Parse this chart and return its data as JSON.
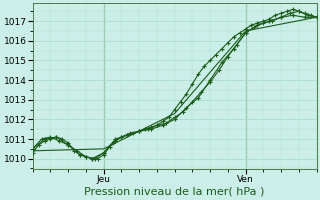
{
  "bg_color": "#cceee8",
  "grid_color": "#aaddcc",
  "line_color": "#1a5c1a",
  "vline_color": "#4a7a4a",
  "xlabel": "Pression niveau de la mer( hPa )",
  "xlabel_fontsize": 8,
  "tick_label_fontsize": 6.5,
  "ylim": [
    1009.5,
    1017.9
  ],
  "yticks": [
    1010,
    1011,
    1012,
    1013,
    1014,
    1015,
    1016,
    1017
  ],
  "xlim": [
    0,
    96
  ],
  "xday_labels": [
    [
      "Jeu",
      24
    ],
    [
      "Ven",
      72
    ]
  ],
  "series1_x": [
    0,
    2,
    4,
    6,
    8,
    10,
    12,
    14,
    16,
    18,
    20,
    22,
    24,
    26,
    28,
    30,
    32,
    34,
    36,
    38,
    40,
    42,
    44,
    46,
    48,
    50,
    52,
    54,
    56,
    58,
    60,
    62,
    64,
    66,
    68,
    70,
    72,
    74,
    76,
    78,
    80,
    82,
    84,
    86,
    88,
    90,
    92,
    94,
    96
  ],
  "series1_y": [
    1010.3,
    1010.7,
    1010.9,
    1011.0,
    1011.1,
    1011.0,
    1010.8,
    1010.4,
    1010.2,
    1010.1,
    1010.0,
    1010.0,
    1010.2,
    1010.6,
    1010.9,
    1011.1,
    1011.2,
    1011.3,
    1011.4,
    1011.5,
    1011.6,
    1011.7,
    1011.9,
    1012.1,
    1012.5,
    1012.9,
    1013.3,
    1013.8,
    1014.3,
    1014.7,
    1015.0,
    1015.3,
    1015.6,
    1015.9,
    1016.2,
    1016.4,
    1016.6,
    1016.8,
    1016.9,
    1017.0,
    1017.1,
    1017.3,
    1017.4,
    1017.5,
    1017.6,
    1017.5,
    1017.4,
    1017.3,
    1017.2
  ],
  "series2_x": [
    0,
    3,
    6,
    9,
    12,
    15,
    18,
    21,
    24,
    27,
    30,
    33,
    36,
    39,
    42,
    45,
    48,
    51,
    54,
    57,
    60,
    63,
    66,
    69,
    72,
    75,
    78,
    81,
    84,
    87,
    90,
    93,
    96
  ],
  "series2_y": [
    1010.5,
    1011.0,
    1011.1,
    1010.9,
    1010.7,
    1010.4,
    1010.1,
    1010.0,
    1010.3,
    1010.8,
    1011.1,
    1011.3,
    1011.4,
    1011.5,
    1011.7,
    1011.8,
    1012.1,
    1012.4,
    1012.9,
    1013.4,
    1013.9,
    1014.5,
    1015.2,
    1015.8,
    1016.4,
    1016.7,
    1016.9,
    1017.0,
    1017.2,
    1017.4,
    1017.5,
    1017.3,
    1017.2
  ],
  "series3_x": [
    0,
    4,
    8,
    12,
    16,
    20,
    24,
    28,
    32,
    36,
    40,
    44,
    48,
    52,
    56,
    60,
    64,
    68,
    72,
    76,
    80,
    84,
    88,
    92,
    96
  ],
  "series3_y": [
    1010.5,
    1011.0,
    1011.1,
    1010.7,
    1010.2,
    1010.0,
    1010.3,
    1011.0,
    1011.2,
    1011.4,
    1011.5,
    1011.7,
    1012.0,
    1012.6,
    1013.1,
    1014.0,
    1014.9,
    1015.6,
    1016.4,
    1016.8,
    1017.0,
    1017.2,
    1017.3,
    1017.2,
    1017.2
  ],
  "series4_x": [
    0,
    24,
    48,
    72,
    96
  ],
  "series4_y": [
    1010.4,
    1010.5,
    1012.3,
    1016.5,
    1017.2
  ]
}
